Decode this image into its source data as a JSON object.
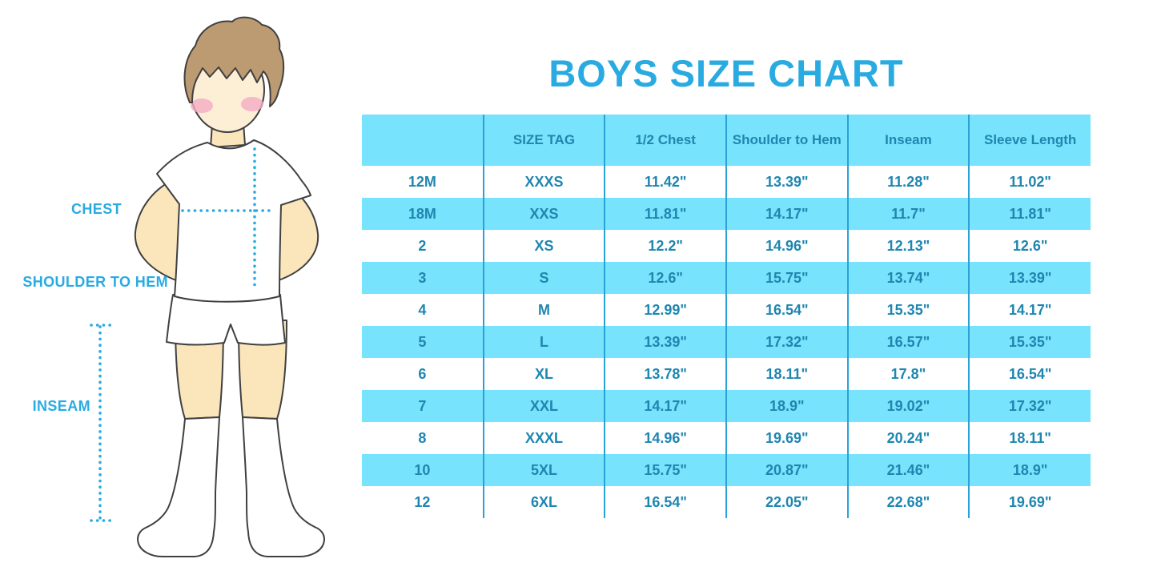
{
  "page": {
    "title": "BOYS SIZE CHART"
  },
  "figure": {
    "labels": {
      "chest": "CHEST",
      "shoulder_to_hem": "SHOULDER TO HEM",
      "inseam": "INSEAM"
    }
  },
  "colors": {
    "accent_blue": "#29abe2",
    "table_cyan": "#78e3fd",
    "table_text": "#1f86b0",
    "divider_blue": "#29a3d6"
  },
  "chart_data": {
    "type": "table",
    "title": "BOYS SIZE CHART",
    "columns": [
      "",
      "SIZE TAG",
      "1/2 Chest",
      "Shoulder to Hem",
      "Inseam",
      "Sleeve Length"
    ],
    "rows": [
      [
        "12M",
        "XXXS",
        "11.42\"",
        "13.39\"",
        "11.28\"",
        "11.02\""
      ],
      [
        "18M",
        "XXS",
        "11.81\"",
        "14.17\"",
        "11.7\"",
        "11.81\""
      ],
      [
        "2",
        "XS",
        "12.2\"",
        "14.96\"",
        "12.13\"",
        "12.6\""
      ],
      [
        "3",
        "S",
        "12.6\"",
        "15.75\"",
        "13.74\"",
        "13.39\""
      ],
      [
        "4",
        "M",
        "12.99\"",
        "16.54\"",
        "15.35\"",
        "14.17\""
      ],
      [
        "5",
        "L",
        "13.39\"",
        "17.32\"",
        "16.57\"",
        "15.35\""
      ],
      [
        "6",
        "XL",
        "13.78\"",
        "18.11\"",
        "17.8\"",
        "16.54\""
      ],
      [
        "7",
        "XXL",
        "14.17\"",
        "18.9\"",
        "19.02\"",
        "17.32\""
      ],
      [
        "8",
        "XXXL",
        "14.96\"",
        "19.69\"",
        "20.24\"",
        "18.11\""
      ],
      [
        "10",
        "5XL",
        "15.75\"",
        "20.87\"",
        "21.46\"",
        "18.9\""
      ],
      [
        "12",
        "6XL",
        "16.54\"",
        "22.05\"",
        "22.68\"",
        "19.69\""
      ]
    ],
    "legend": false,
    "grid": "vertical-dividers-only",
    "zebra_striping": true
  }
}
